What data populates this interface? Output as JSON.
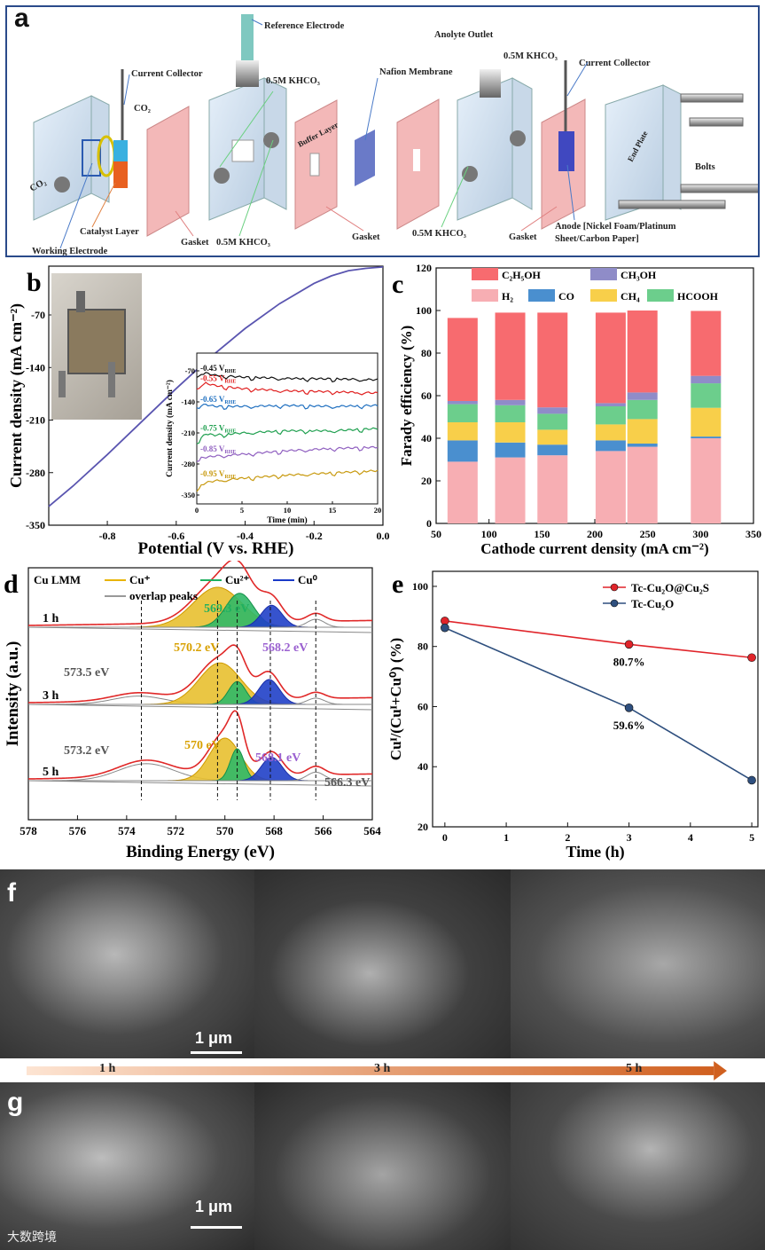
{
  "panel_a": {
    "label": "a",
    "components": {
      "current_collector_left": "Current Collector",
      "co2_top": "CO₂",
      "co2_left": "CO₂",
      "reference_electrode": "Reference Electrode",
      "khco3_top": "0.5M KHCO₃",
      "buffer_layer": "Buffer Layer",
      "nafion": "Nafion Membrane",
      "anolyte_outlet": "Anolyte Outlet",
      "khco3_top2": "0.5M KHCO₃",
      "current_collector_right": "Current Collector",
      "end_plate": "End Plate",
      "bolts": "Bolts",
      "catalyst_layer": "Catalyst Layer",
      "working_electrode": "Working Electrode",
      "gasket1": "Gasket",
      "khco3_bottom": "0.5M KHCO₃",
      "gasket2": "Gasket",
      "khco3_bottom2": "0.5M KHCO₃",
      "gasket3": "Gasket",
      "anode": "Anode [Nickel Foam/Platinum",
      "anode2": "Sheet/Carbon Paper]"
    }
  },
  "chart_data": [
    {
      "id": "b",
      "type": "line",
      "label": "b",
      "xlabel": "Potential (V vs. RHE)",
      "ylabel": "Current density (mA cm⁻²)",
      "xlim": [
        -0.97,
        0.0
      ],
      "ylim": [
        -350,
        -5
      ],
      "xticks": [
        "-0.8",
        "-0.6",
        "-0.4",
        "-0.2",
        "0.0"
      ],
      "xtick_values": [
        -0.8,
        -0.6,
        -0.4,
        -0.2,
        0.0
      ],
      "yticks": [
        "-70",
        "-140",
        "-210",
        "-280",
        "-350"
      ],
      "ytick_values": [
        -70,
        -140,
        -210,
        -280,
        -350
      ],
      "color": "#5a55b0",
      "x": [
        -0.97,
        -0.9,
        -0.8,
        -0.7,
        -0.6,
        -0.5,
        -0.4,
        -0.3,
        -0.2,
        -0.15,
        -0.1,
        -0.05,
        0.0
      ],
      "y": [
        -325,
        -298,
        -256,
        -212,
        -168,
        -126,
        -88,
        -55,
        -28,
        -18,
        -11,
        -8,
        -6
      ],
      "inset": {
        "xlabel": "Time (min)",
        "ylabel": "Current density (mA cm⁻²)",
        "xlim": [
          0,
          20
        ],
        "ylim": [
          -370,
          -30
        ],
        "xticks": [
          "0",
          "5",
          "10",
          "15",
          "20"
        ],
        "xtick_values": [
          0,
          5,
          10,
          15,
          20
        ],
        "yticks": [
          "-70",
          "-140",
          "-210",
          "-280",
          "-350"
        ],
        "ytick_values": [
          -70,
          -140,
          -210,
          -280,
          -350
        ],
        "series": [
          {
            "name": "-0.45 V",
            "sub": "RHE",
            "color": "#111111",
            "x": [
              0,
              1,
              2,
              5,
              10,
              15,
              20
            ],
            "y": [
              -80,
              -75,
              -80,
              -84,
              -87,
              -88,
              -90
            ]
          },
          {
            "name": "-0.55 V",
            "sub": "RHE",
            "color": "#e02020",
            "x": [
              0,
              1,
              2,
              5,
              10,
              15,
              20
            ],
            "y": [
              -108,
              -98,
              -103,
              -110,
              -115,
              -117,
              -120
            ]
          },
          {
            "name": "-0.65 V",
            "sub": "RHE",
            "color": "#2070c0",
            "x": [
              0,
              1,
              2,
              5,
              10,
              15,
              20
            ],
            "y": [
              -150,
              -146,
              -150,
              -150,
              -148,
              -150,
              -148
            ]
          },
          {
            "name": "-0.75 V",
            "sub": "RHE",
            "color": "#20a050",
            "x": [
              0,
              1,
              2,
              5,
              10,
              15,
              20
            ],
            "y": [
              -230,
              -212,
              -215,
              -210,
              -205,
              -205,
              -200
            ]
          },
          {
            "name": "-0.85 V",
            "sub": "RHE",
            "color": "#9060c0",
            "x": [
              0,
              1,
              2,
              5,
              10,
              15,
              20
            ],
            "y": [
              -268,
              -265,
              -262,
              -258,
              -250,
              -245,
              -242
            ]
          },
          {
            "name": "-0.95 V",
            "sub": "RHE",
            "color": "#c89a10",
            "x": [
              0,
              1,
              2,
              5,
              10,
              15,
              20
            ],
            "y": [
              -335,
              -322,
              -318,
              -312,
              -305,
              -300,
              -295
            ]
          }
        ]
      }
    },
    {
      "id": "c",
      "type": "bar",
      "label": "c",
      "xlabel": "Cathode current density (mA cm⁻²)",
      "ylabel": "Farady efficiency (%)",
      "xlim": [
        50,
        350
      ],
      "ylim": [
        0,
        120
      ],
      "xticks": [
        "50",
        "100",
        "150",
        "200",
        "250",
        "300",
        "350"
      ],
      "xtick_values": [
        50,
        100,
        150,
        200,
        250,
        300,
        350
      ],
      "yticks": [
        "0",
        "20",
        "40",
        "60",
        "80",
        "100",
        "120"
      ],
      "ytick_values": [
        0,
        20,
        40,
        60,
        80,
        100,
        120
      ],
      "x": [
        75,
        120,
        160,
        215,
        245,
        305
      ],
      "series": [
        {
          "name": "H₂",
          "color": "#f7aeb3",
          "values": [
            29,
            31,
            32,
            34,
            36,
            40
          ]
        },
        {
          "name": "CO",
          "color": "#4a8fcf",
          "values": [
            10,
            7,
            5,
            5,
            1.5,
            0.8
          ]
        },
        {
          "name": "CH₄",
          "color": "#f8cf4a",
          "values": [
            8.5,
            9.5,
            7,
            7.5,
            11.5,
            13.5
          ]
        },
        {
          "name": "HCOOH",
          "color": "#6cce8c",
          "values": [
            8.5,
            8,
            7.5,
            8.5,
            9,
            11.5
          ]
        },
        {
          "name": "CH₃OH",
          "color": "#8f8cc8",
          "values": [
            1.5,
            2.5,
            3,
            1.5,
            3.5,
            3.5
          ]
        },
        {
          "name": "C₂H₅OH",
          "color": "#f76b6f",
          "values": [
            39,
            41,
            44.5,
            42.5,
            38.5,
            30.5
          ]
        }
      ],
      "legend_rows": [
        [
          "C₂H₅OH",
          "CH₃OH"
        ],
        [
          "H₂",
          "CO",
          "CH₄",
          "HCOOH"
        ]
      ]
    },
    {
      "id": "d",
      "type": "area",
      "label": "d",
      "xlabel": "Binding Energy (eV)",
      "ylabel": "Intensity (a.u.)",
      "xlim": [
        578,
        564
      ],
      "xticks": [
        "578",
        "576",
        "574",
        "572",
        "570",
        "568",
        "566",
        "564"
      ],
      "xtick_values": [
        578,
        576,
        574,
        572,
        570,
        568,
        566,
        564
      ],
      "legend": {
        "title": "Cu LMM",
        "items": [
          "Cu⁺",
          "Cu²⁺",
          "Cu⁰",
          "overlap peaks"
        ],
        "colors": [
          "#e8b400",
          "#20b060",
          "#1a3ac8",
          "#999999"
        ]
      },
      "traces": [
        {
          "name": "1 h",
          "peaks": [
            {
              "c": 570.3,
              "h": 1.0,
              "w": 1.4,
              "comp": "Cu+"
            },
            {
              "c": 569.4,
              "h": 0.85,
              "w": 0.8,
              "comp": "Cu2+"
            },
            {
              "c": 568.1,
              "h": 0.55,
              "w": 0.6,
              "comp": "Cu0"
            },
            {
              "c": 566.3,
              "h": 0.2,
              "w": 0.5,
              "comp": "overlap"
            }
          ]
        },
        {
          "name": "3 h",
          "peaks": [
            {
              "c": 573.5,
              "h": 0.2,
              "w": 1.5,
              "comp": "overlap"
            },
            {
              "c": 570.2,
              "h": 1.0,
              "w": 1.2,
              "comp": "Cu+"
            },
            {
              "c": 569.5,
              "h": 0.55,
              "w": 0.5,
              "comp": "Cu2+"
            },
            {
              "c": 568.2,
              "h": 0.6,
              "w": 0.6,
              "comp": "Cu0"
            },
            {
              "c": 566.3,
              "h": 0.15,
              "w": 0.5,
              "comp": "overlap"
            }
          ]
        },
        {
          "name": "5 h",
          "peaks": [
            {
              "c": 573.2,
              "h": 0.4,
              "w": 1.6,
              "comp": "overlap"
            },
            {
              "c": 570.0,
              "h": 1.0,
              "w": 0.9,
              "comp": "Cu+"
            },
            {
              "c": 569.5,
              "h": 0.75,
              "w": 0.4,
              "comp": "Cu2+"
            },
            {
              "c": 568.1,
              "h": 0.55,
              "w": 0.6,
              "comp": "Cu0"
            },
            {
              "c": 566.3,
              "h": 0.2,
              "w": 0.5,
              "comp": "overlap"
            }
          ]
        }
      ],
      "annotations": [
        {
          "text": "569.3 eV",
          "color": "#20b060"
        },
        {
          "text": "573.5 eV",
          "color": "#555555"
        },
        {
          "text": "570.2 eV",
          "color": "#d8a000"
        },
        {
          "text": "568.2 eV",
          "color": "#9a60d0"
        },
        {
          "text": "573.2 eV",
          "color": "#555555"
        },
        {
          "text": "570 eV",
          "color": "#d8a000"
        },
        {
          "text": "568.1 eV",
          "color": "#9a60d0"
        },
        {
          "text": "566.3 eV",
          "color": "#555555"
        }
      ],
      "dashed_lines_ev": [
        573.4,
        570.3,
        569.5,
        568.15,
        566.3
      ]
    },
    {
      "id": "e",
      "type": "line",
      "label": "e",
      "xlabel": "Time (h)",
      "ylabel": "Cuᴵ/(Cuᴵ+Cu⁰) (%)",
      "xlim": [
        -0.2,
        5.1
      ],
      "ylim": [
        20,
        105
      ],
      "xticks": [
        "0",
        "1",
        "2",
        "3",
        "4",
        "5"
      ],
      "xtick_values": [
        0,
        1,
        2,
        3,
        4,
        5
      ],
      "yticks": [
        "20",
        "40",
        "60",
        "80",
        "100"
      ],
      "ytick_values": [
        20,
        40,
        60,
        80,
        100
      ],
      "series": [
        {
          "name": "Tc-Cu₂O@Cu₂S",
          "color": "#e0242a",
          "x": [
            0,
            3,
            5
          ],
          "y": [
            88.5,
            80.7,
            76.3
          ]
        },
        {
          "name": "Tc-Cu₂O",
          "color": "#2e4f7e",
          "x": [
            0,
            3,
            5
          ],
          "y": [
            86.2,
            59.6,
            35.5
          ]
        }
      ],
      "data_labels": [
        "80.7%",
        "59.6%"
      ]
    }
  ],
  "panel_f": {
    "label": "f",
    "scale": "1 μm",
    "times": [
      "1 h",
      "3 h",
      "5 h"
    ]
  },
  "panel_g": {
    "label": "g",
    "scale": "1 μm"
  },
  "watermark": "大数跨境"
}
